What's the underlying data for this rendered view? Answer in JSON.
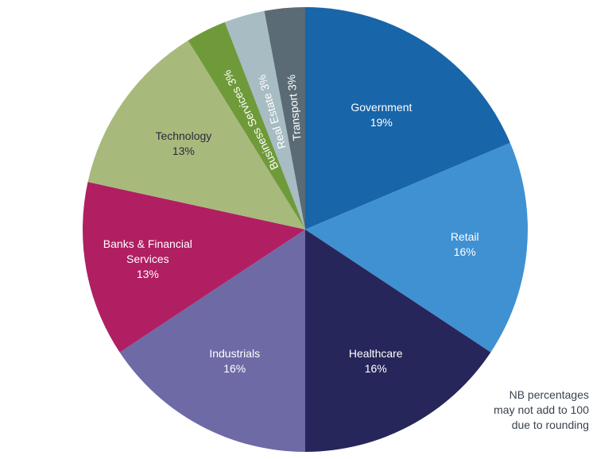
{
  "chart_data": {
    "type": "pie",
    "title": "",
    "start": "12 o'clock",
    "direction": "clockwise",
    "slices": [
      {
        "label_lines": [
          "Government",
          "19%"
        ],
        "value": 19,
        "color": "#1865a9"
      },
      {
        "label_lines": [
          "Retail",
          "16%"
        ],
        "value": 16,
        "color": "#3f91d2"
      },
      {
        "label_lines": [
          "Healthcare",
          "16%"
        ],
        "value": 16,
        "color": "#27265a"
      },
      {
        "label_lines": [
          "Industrials",
          "16%"
        ],
        "value": 16,
        "color": "#6e6aa6"
      },
      {
        "label_lines": [
          "Banks & Financial",
          "Services",
          "13%"
        ],
        "value": 13,
        "color": "#b01f62"
      },
      {
        "label_lines": [
          "Technology",
          "13%"
        ],
        "value": 13,
        "color": "#a7ba7c"
      },
      {
        "label_lines": [
          "Business Services 3%"
        ],
        "value": 3,
        "color": "#6f9a3a"
      },
      {
        "label_lines": [
          "Real Estate 3%"
        ],
        "value": 3,
        "color": "#a7bcc3"
      },
      {
        "label_lines": [
          "Transport 3%"
        ],
        "value": 3,
        "color": "#5a6b75"
      }
    ]
  },
  "footnote": {
    "line1": "NB percentages",
    "line2": "may not add to 100",
    "line3": "due to rounding"
  }
}
